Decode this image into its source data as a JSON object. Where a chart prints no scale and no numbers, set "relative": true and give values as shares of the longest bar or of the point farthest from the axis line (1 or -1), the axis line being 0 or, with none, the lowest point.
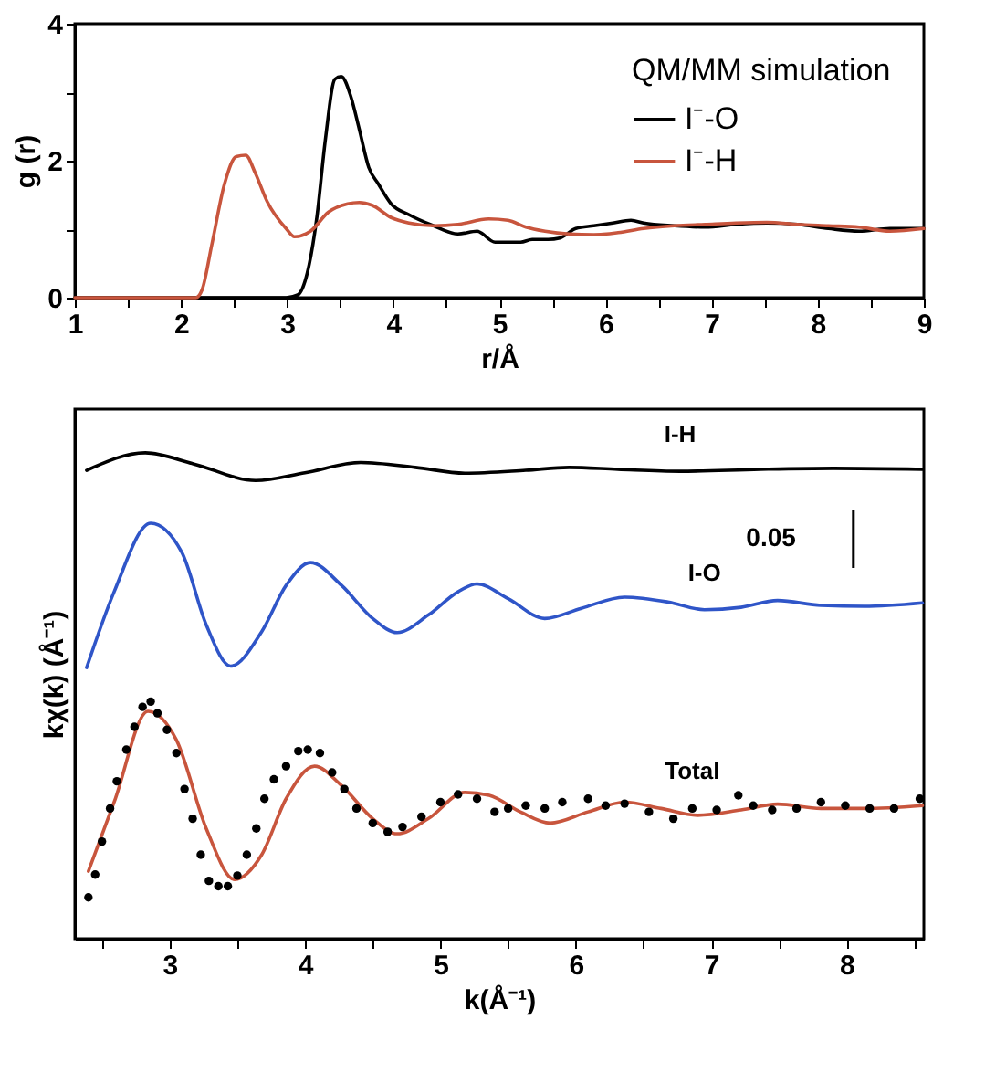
{
  "chart_data": [
    {
      "type": "line",
      "xlabel": "r/Å",
      "ylabel": "g (r)",
      "legend_title": "QM/MM simulation",
      "legend": "top right",
      "xlim": [
        1,
        9
      ],
      "xticks": [
        1,
        {
          "value": 1.5,
          "label": null
        },
        2,
        {
          "value": 2.5,
          "label": null
        },
        3,
        {
          "value": 3.5,
          "label": null
        },
        4,
        {
          "value": 4.5,
          "label": null
        },
        5,
        {
          "value": 5.5,
          "label": null
        },
        6,
        {
          "value": 6.5,
          "label": null
        },
        7,
        {
          "value": 7.5,
          "label": null
        },
        8,
        {
          "value": 8.5,
          "label": null
        },
        9
      ],
      "ylim": [
        0,
        4
      ],
      "yticks": [
        0,
        {
          "value": 1,
          "label": null
        },
        2,
        {
          "value": 3,
          "label": null
        },
        4
      ],
      "grid": false,
      "line_style": "solid",
      "series": [
        {
          "name": "I⁻-O",
          "color": "#000000",
          "x": [
            1.0,
            2.99,
            3.1,
            3.19,
            3.28,
            3.36,
            3.45,
            3.51,
            3.6,
            3.68,
            3.77,
            3.86,
            3.98,
            4.15,
            4.38,
            4.61,
            4.79,
            4.96,
            5.2,
            5.31,
            5.46,
            5.57,
            5.72,
            5.89,
            6.07,
            6.24,
            6.36,
            6.65,
            6.94,
            7.23,
            7.52,
            7.81,
            8.1,
            8.39,
            8.68,
            9.0
          ],
          "values": [
            0,
            0,
            0.04,
            0.36,
            1.17,
            2.3,
            3.19,
            3.23,
            2.94,
            2.46,
            1.9,
            1.66,
            1.37,
            1.21,
            1.05,
            0.93,
            0.97,
            0.81,
            0.81,
            0.85,
            0.85,
            0.87,
            1.01,
            1.05,
            1.09,
            1.13,
            1.09,
            1.05,
            1.03,
            1.07,
            1.09,
            1.07,
            1.01,
            0.97,
            1.01,
            1.01
          ]
        },
        {
          "name": "I⁻-H",
          "color": "#c8553d",
          "x": [
            1.0,
            2.14,
            2.2,
            2.29,
            2.41,
            2.52,
            2.61,
            2.7,
            2.81,
            2.99,
            3.07,
            3.22,
            3.39,
            3.57,
            3.68,
            3.8,
            3.98,
            4.15,
            4.38,
            4.61,
            4.9,
            5.08,
            5.25,
            5.43,
            5.66,
            5.89,
            6.12,
            6.36,
            6.65,
            6.94,
            7.23,
            7.52,
            7.81,
            8.1,
            8.39,
            8.68,
            9.0
          ],
          "values": [
            0,
            0,
            0.12,
            0.77,
            1.66,
            2.06,
            2.08,
            1.82,
            1.41,
            1.01,
            0.89,
            0.97,
            1.25,
            1.37,
            1.39,
            1.35,
            1.17,
            1.09,
            1.05,
            1.07,
            1.15,
            1.13,
            1.03,
            0.97,
            0.93,
            0.92,
            0.95,
            1.01,
            1.05,
            1.07,
            1.09,
            1.1,
            1.07,
            1.05,
            1.03,
            0.97,
            1.01
          ]
        }
      ]
    },
    {
      "type": "line",
      "relative": true,
      "xlabel": "k(Å⁻¹)",
      "ylabel": "kχ(k) (Å⁻¹)",
      "tick_labels": "x",
      "grid": false,
      "line_style": "solid",
      "annotations": [
        "0.05"
      ],
      "xlim": [
        2.3,
        8.57
      ],
      "xticks": [
        {
          "value": 2.5,
          "label": null
        },
        3,
        {
          "value": 3.5,
          "label": null
        },
        4,
        {
          "value": 4.5,
          "label": null
        },
        5,
        {
          "value": 5.5,
          "label": null
        },
        6,
        {
          "value": 6.5,
          "label": null
        },
        7,
        {
          "value": 7.5,
          "label": null
        },
        8,
        {
          "value": 8.5,
          "label": null
        }
      ],
      "series": [
        {
          "name": "I-H",
          "type": "line",
          "color": "#000000",
          "x": [
            2.387,
            2.82,
            3.18,
            3.635,
            4.0,
            4.41,
            4.815,
            5.18,
            5.63,
            5.95,
            6.31,
            6.77,
            7.36,
            7.9,
            8.56
          ],
          "values": [
            0.964,
            1.0,
            0.977,
            0.943,
            0.959,
            0.98,
            0.97,
            0.958,
            0.964,
            0.97,
            0.966,
            0.962,
            0.966,
            0.968,
            0.966
          ]
        },
        {
          "name": "I-O",
          "type": "line",
          "color": "#2f55c8",
          "x": [
            2.387,
            2.59,
            2.86,
            3.09,
            3.27,
            3.45,
            3.68,
            3.86,
            4.04,
            4.27,
            4.5,
            4.68,
            4.91,
            5.13,
            5.27,
            5.5,
            5.77,
            6.04,
            6.36,
            6.68,
            6.95,
            7.22,
            7.49,
            7.81,
            8.13,
            8.56
          ],
          "values": [
            0.558,
            0.714,
            0.855,
            0.795,
            0.646,
            0.561,
            0.632,
            0.727,
            0.774,
            0.727,
            0.659,
            0.63,
            0.666,
            0.714,
            0.73,
            0.7,
            0.659,
            0.68,
            0.703,
            0.693,
            0.677,
            0.682,
            0.696,
            0.686,
            0.684,
            0.691
          ]
        },
        {
          "name": "Total",
          "type": "scatter",
          "marker": "circle",
          "color": "#000000",
          "x": [
            2.4,
            2.45,
            2.5,
            2.56,
            2.61,
            2.68,
            2.74,
            2.8,
            2.86,
            2.91,
            2.98,
            3.05,
            3.11,
            3.17,
            3.23,
            3.29,
            3.36,
            3.43,
            3.5,
            3.57,
            3.64,
            3.7,
            3.77,
            3.86,
            3.95,
            4.02,
            4.11,
            4.2,
            4.29,
            4.38,
            4.5,
            4.61,
            4.72,
            4.86,
            5.0,
            5.13,
            5.27,
            5.4,
            5.5,
            5.63,
            5.77,
            5.9,
            6.09,
            6.22,
            6.36,
            6.54,
            6.72,
            6.86,
            7.04,
            7.2,
            7.31,
            7.45,
            7.63,
            7.81,
            7.99,
            8.17,
            8.35,
            8.54
          ],
          "values": [
            0.085,
            0.132,
            0.2,
            0.268,
            0.324,
            0.389,
            0.436,
            0.477,
            0.488,
            0.464,
            0.43,
            0.382,
            0.308,
            0.247,
            0.173,
            0.119,
            0.108,
            0.108,
            0.13,
            0.173,
            0.227,
            0.288,
            0.328,
            0.355,
            0.386,
            0.389,
            0.382,
            0.342,
            0.308,
            0.268,
            0.238,
            0.22,
            0.23,
            0.251,
            0.281,
            0.297,
            0.288,
            0.261,
            0.268,
            0.274,
            0.268,
            0.281,
            0.288,
            0.274,
            0.278,
            0.261,
            0.247,
            0.268,
            0.265,
            0.295,
            0.274,
            0.265,
            0.268,
            0.281,
            0.274,
            0.268,
            0.268,
            0.288
          ]
        },
        {
          "type": "line",
          "color": "#c8553d",
          "x": [
            2.4,
            2.59,
            2.84,
            3.05,
            3.27,
            3.48,
            3.68,
            3.86,
            4.07,
            4.27,
            4.5,
            4.68,
            4.91,
            5.18,
            5.36,
            5.59,
            5.81,
            6.09,
            6.36,
            6.63,
            6.9,
            7.22,
            7.49,
            7.81,
            8.13,
            8.56
          ],
          "values": [
            0.139,
            0.281,
            0.468,
            0.409,
            0.227,
            0.122,
            0.173,
            0.288,
            0.355,
            0.315,
            0.247,
            0.216,
            0.247,
            0.301,
            0.295,
            0.261,
            0.238,
            0.261,
            0.281,
            0.268,
            0.254,
            0.265,
            0.277,
            0.268,
            0.268,
            0.274
          ]
        }
      ]
    }
  ]
}
